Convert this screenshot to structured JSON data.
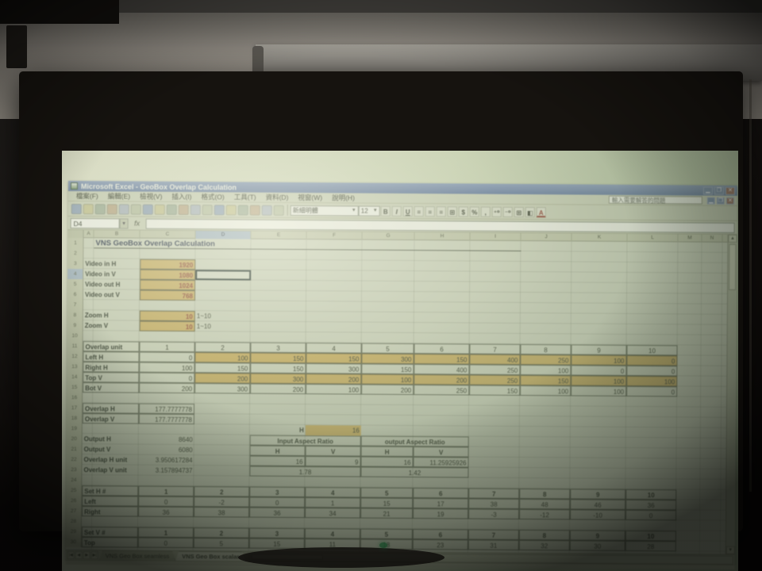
{
  "window": {
    "title": "Microsoft Excel - GeoBox Overlap Calculation",
    "buttons": [
      "minimize",
      "restore",
      "close"
    ]
  },
  "menu": {
    "items": [
      "檔案(F)",
      "編輯(E)",
      "檢視(V)",
      "插入(I)",
      "格式(O)",
      "工具(T)",
      "資料(D)",
      "視窗(W)",
      "說明(H)"
    ],
    "help_box": "輸入需要解答的問題"
  },
  "toolbar": {
    "standard_icons": [
      "new",
      "save",
      "open",
      "print",
      "print-preview",
      "spelling",
      "research",
      "cut",
      "copy",
      "paste",
      "format-painter",
      "undo",
      "redo",
      "hyperlink",
      "autosum",
      "sort-ascending",
      "chart",
      "help"
    ],
    "font_name": "新細明體",
    "font_size": "12",
    "format_icons": [
      {
        "name": "bold",
        "glyph": "B"
      },
      {
        "name": "italic",
        "glyph": "I"
      },
      {
        "name": "underline",
        "glyph": "U"
      },
      {
        "name": "align-left",
        "glyph": "≡"
      },
      {
        "name": "align-center",
        "glyph": "≡"
      },
      {
        "name": "align-right",
        "glyph": "≡"
      },
      {
        "name": "merge-center",
        "glyph": "⊞"
      },
      {
        "name": "currency",
        "glyph": "$"
      },
      {
        "name": "percent",
        "glyph": "%"
      },
      {
        "name": "comma",
        "glyph": ","
      },
      {
        "name": "increase-decimal",
        "glyph": "⁺⁰"
      },
      {
        "name": "decrease-decimal",
        "glyph": "⁻⁰"
      },
      {
        "name": "borders",
        "glyph": "⊞"
      },
      {
        "name": "fill-color",
        "glyph": "◧"
      },
      {
        "name": "font-color",
        "glyph": "A"
      }
    ]
  },
  "formula_bar": {
    "name_box": "D4",
    "fx_label": "fx"
  },
  "sheet": {
    "title": "VNS GeoBox Overlap Calculation",
    "columns": [
      "A",
      "B",
      "C",
      "D",
      "E",
      "F",
      "G",
      "H",
      "I",
      "J",
      "K",
      "L",
      "M",
      "N"
    ],
    "selected_column": "D",
    "selected_row": 4,
    "row_count": 30,
    "inputs": [
      {
        "row": 3,
        "label": "Video in H",
        "value": "1920"
      },
      {
        "row": 4,
        "label": "Video in V",
        "value": "1080"
      },
      {
        "row": 5,
        "label": "Video out H",
        "value": "1024"
      },
      {
        "row": 6,
        "label": "Video out V",
        "value": "768"
      }
    ],
    "zoom_inputs": [
      {
        "row": 8,
        "label": "Zoom H",
        "value": "10",
        "note": "1~10"
      },
      {
        "row": 9,
        "label": "Zoom V",
        "value": "10",
        "note": "1~10"
      }
    ],
    "overlap_table": {
      "row": 11,
      "header": "Overlap unit",
      "units": [
        "1",
        "2",
        "3",
        "4",
        "5",
        "6",
        "7",
        "8",
        "9",
        "10"
      ],
      "rows": [
        {
          "label": "Left H",
          "values": [
            "0",
            "100",
            "150",
            "150",
            "300",
            "150",
            "400",
            "250",
            "100",
            "0"
          ],
          "highlighted": true
        },
        {
          "label": "Right H",
          "values": [
            "100",
            "150",
            "150",
            "300",
            "150",
            "400",
            "250",
            "100",
            "0",
            "0"
          ],
          "highlighted": false
        },
        {
          "label": "Top V",
          "values": [
            "0",
            "200",
            "300",
            "200",
            "100",
            "200",
            "250",
            "150",
            "100",
            "100"
          ],
          "highlighted": true
        },
        {
          "label": "Bot V",
          "values": [
            "200",
            "300",
            "200",
            "100",
            "200",
            "250",
            "150",
            "100",
            "100",
            "0"
          ],
          "highlighted": false
        }
      ]
    },
    "overlap_results": [
      {
        "row": 17,
        "label": "Overlap H",
        "value": "177.7777778"
      },
      {
        "row": 18,
        "label": "Overlap V",
        "value": "177.7777778"
      }
    ],
    "h_input": {
      "row": 19,
      "label": "H",
      "value": "16"
    },
    "outputs": [
      {
        "row": 20,
        "label": "Output H",
        "value": "8640"
      },
      {
        "row": 21,
        "label": "Output V",
        "value": "6080"
      },
      {
        "row": 22,
        "label": "Overlap H unit",
        "value": "3.950617284"
      },
      {
        "row": 23,
        "label": "Overlap V unit",
        "value": "3.157894737"
      }
    ],
    "aspect": {
      "input_header": "Input Aspect Ratio",
      "output_header": "output Aspect Ratio",
      "h_label": "H",
      "v_label": "V",
      "input_h": "16",
      "input_v": "9",
      "input_ratio": "1.78",
      "output_h": "16",
      "output_v": "11.25925926",
      "output_ratio": "1.42"
    },
    "set_h": {
      "row": 25,
      "header": "Set H #",
      "units": [
        "1",
        "2",
        "3",
        "4",
        "5",
        "6",
        "7",
        "8",
        "9",
        "10"
      ],
      "rows": [
        {
          "label": "Left",
          "values": [
            "0",
            "-2",
            "0",
            "1",
            "15",
            "17",
            "38",
            "48",
            "46",
            "36"
          ]
        },
        {
          "label": "Right",
          "values": [
            "36",
            "38",
            "36",
            "34",
            "21",
            "19",
            "-3",
            "-12",
            "-10",
            "0"
          ]
        }
      ]
    },
    "set_v": {
      "row": 29,
      "header": "Set V #",
      "units": [
        "1",
        "2",
        "3",
        "4",
        "5",
        "6",
        "7",
        "8",
        "9",
        "10"
      ],
      "rows": [
        {
          "label": "Top",
          "values": [
            "0",
            "5",
            "15",
            "11",
            "18",
            "23",
            "31",
            "32",
            "30",
            "28"
          ]
        }
      ]
    },
    "tabs": [
      {
        "label": "VNS Geo Box seamless",
        "active": false
      },
      {
        "label": "VNS Geo Box scalar",
        "active": true
      }
    ]
  }
}
